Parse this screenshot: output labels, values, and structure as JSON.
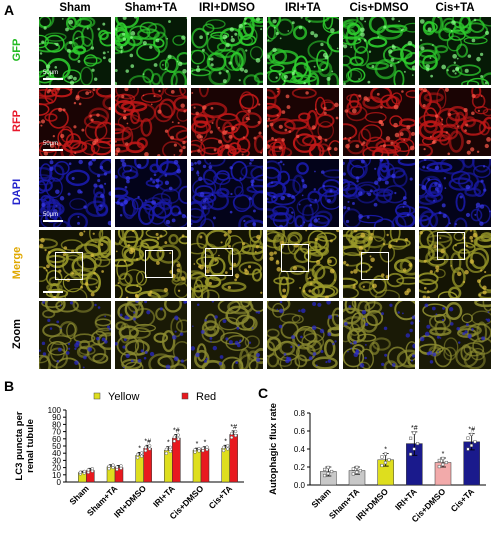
{
  "panel_labels": {
    "a": "A",
    "b": "B",
    "c": "C"
  },
  "columns": [
    "Sham",
    "Sham+TA",
    "IRI+DMSO",
    "IRI+TA",
    "Cis+DMSO",
    "Cis+TA"
  ],
  "rows": [
    {
      "label": "GFP",
      "color": "#22bb22"
    },
    {
      "label": "RFP",
      "color": "#e8192c"
    },
    {
      "label": "DAPI",
      "color": "#2222cc"
    },
    {
      "label": "Merge",
      "color": "#e0a800"
    },
    {
      "label": "Zoom",
      "color": "#000000"
    }
  ],
  "scale_label": "50μm",
  "tile_palettes": {
    "GFP": {
      "bg": "#061a06",
      "fg": "#2ecc2e",
      "hi": "#8cff8c"
    },
    "RFP": {
      "bg": "#1a0404",
      "fg": "#c01818",
      "hi": "#ff5a4a"
    },
    "DAPI": {
      "bg": "#03031a",
      "fg": "#1a1aa8",
      "hi": "#3a3aee"
    },
    "Merge": {
      "bg": "#141404",
      "fg": "#9a9a2a",
      "hi": "#e0c040"
    },
    "Zoom": {
      "bg": "#1a1a06",
      "fg": "#8a8a30",
      "hi": "#2a2ad0"
    }
  },
  "chart_data": [
    {
      "type": "bar",
      "panel": "B",
      "ylabel": "LC3 puncta per renal tubule",
      "ylim": [
        0,
        100
      ],
      "yticks": [
        0,
        10,
        20,
        30,
        40,
        50,
        60,
        70,
        80,
        90,
        100
      ],
      "categories": [
        "Sham",
        "Sham+TA",
        "IRI+DMSO",
        "IRI+TA",
        "Cis+DMSO",
        "Cis+TA"
      ],
      "legend_position": "top",
      "series": [
        {
          "name": "Yellow",
          "color": "#dede1e",
          "values": [
            13,
            21,
            37,
            44,
            44,
            47
          ],
          "errors": [
            2,
            3,
            4,
            5,
            3,
            4
          ],
          "annotations": [
            "",
            "",
            "*",
            "*",
            "*",
            "*"
          ]
        },
        {
          "name": "Red",
          "color": "#e8191f",
          "values": [
            16,
            20,
            47,
            61,
            46,
            66
          ],
          "errors": [
            3,
            3,
            4,
            5,
            3,
            5
          ],
          "annotations": [
            "",
            "",
            "*#",
            "*#",
            "*",
            "*#"
          ]
        }
      ]
    },
    {
      "type": "bar",
      "panel": "C",
      "ylabel": "Autophagic flux rate",
      "ylim": [
        0,
        0.8
      ],
      "yticks": [
        0,
        0.2,
        0.4,
        0.6,
        0.8
      ],
      "ytick_labels": [
        "0.0",
        "0.2",
        "0.4",
        "0.6",
        "0.8"
      ],
      "categories": [
        "Sham",
        "Sham+TA",
        "IRI+DMSO",
        "IRI+TA",
        "Cis+DMSO",
        "Cis+TA"
      ],
      "values": [
        0.15,
        0.16,
        0.28,
        0.46,
        0.25,
        0.48
      ],
      "errors": [
        0.05,
        0.04,
        0.07,
        0.13,
        0.05,
        0.09
      ],
      "colors": [
        "#c8c8c8",
        "#c8c8c8",
        "#dede1e",
        "#1a1a8c",
        "#f2aaaa",
        "#1a1a8c"
      ],
      "annotations": [
        "",
        "",
        "*",
        "*#",
        "*",
        "*#"
      ]
    }
  ]
}
